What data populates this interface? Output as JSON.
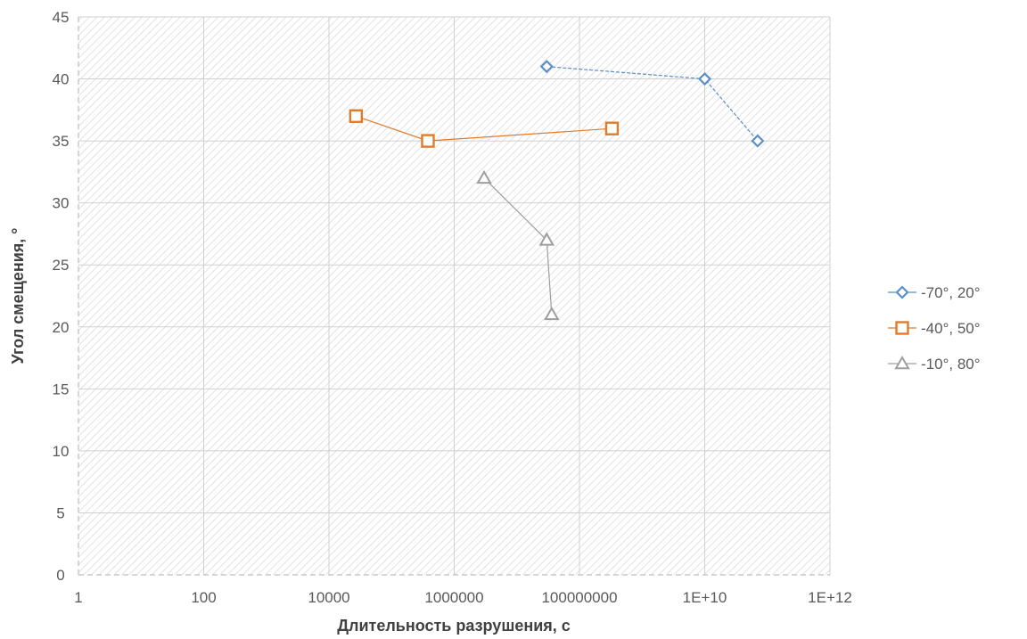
{
  "chart_data": {
    "type": "scatter",
    "title": "",
    "xlabel": "Длительность разрушения, с",
    "ylabel": "Угол смещения, °",
    "x_scale": "log",
    "xlim": [
      1,
      1000000000000
    ],
    "ylim": [
      0,
      45
    ],
    "x_ticks": [
      1,
      100,
      10000,
      1000000,
      100000000,
      10000000000,
      1000000000000
    ],
    "x_tick_labels": [
      "1",
      "100",
      "10000",
      "1000000",
      "100000000",
      "1E+10",
      "1E+12"
    ],
    "y_ticks": [
      0,
      5,
      10,
      15,
      20,
      25,
      30,
      35,
      40,
      45
    ],
    "y_tick_labels": [
      "0",
      "5",
      "10",
      "15",
      "20",
      "25",
      "30",
      "35",
      "40",
      "45"
    ],
    "grid": true,
    "legend_position": "right",
    "series": [
      {
        "name": "-70°, 20°",
        "marker": "diamond",
        "color": "#5b8fc7",
        "points": [
          {
            "x": 30000000,
            "y": 41
          },
          {
            "x": 10000000000,
            "y": 40
          },
          {
            "x": 70000000000,
            "y": 35
          }
        ]
      },
      {
        "name": "-40°, 50°",
        "marker": "square",
        "color": "#e07b2a",
        "points": [
          {
            "x": 27000,
            "y": 37
          },
          {
            "x": 380000,
            "y": 35
          },
          {
            "x": 330000000,
            "y": 36
          }
        ]
      },
      {
        "name": "-10°, 80°",
        "marker": "triangle",
        "color": "#9e9e9e",
        "points": [
          {
            "x": 3000000,
            "y": 32
          },
          {
            "x": 30000000,
            "y": 27
          },
          {
            "x": 36000000,
            "y": 21
          }
        ]
      }
    ]
  }
}
